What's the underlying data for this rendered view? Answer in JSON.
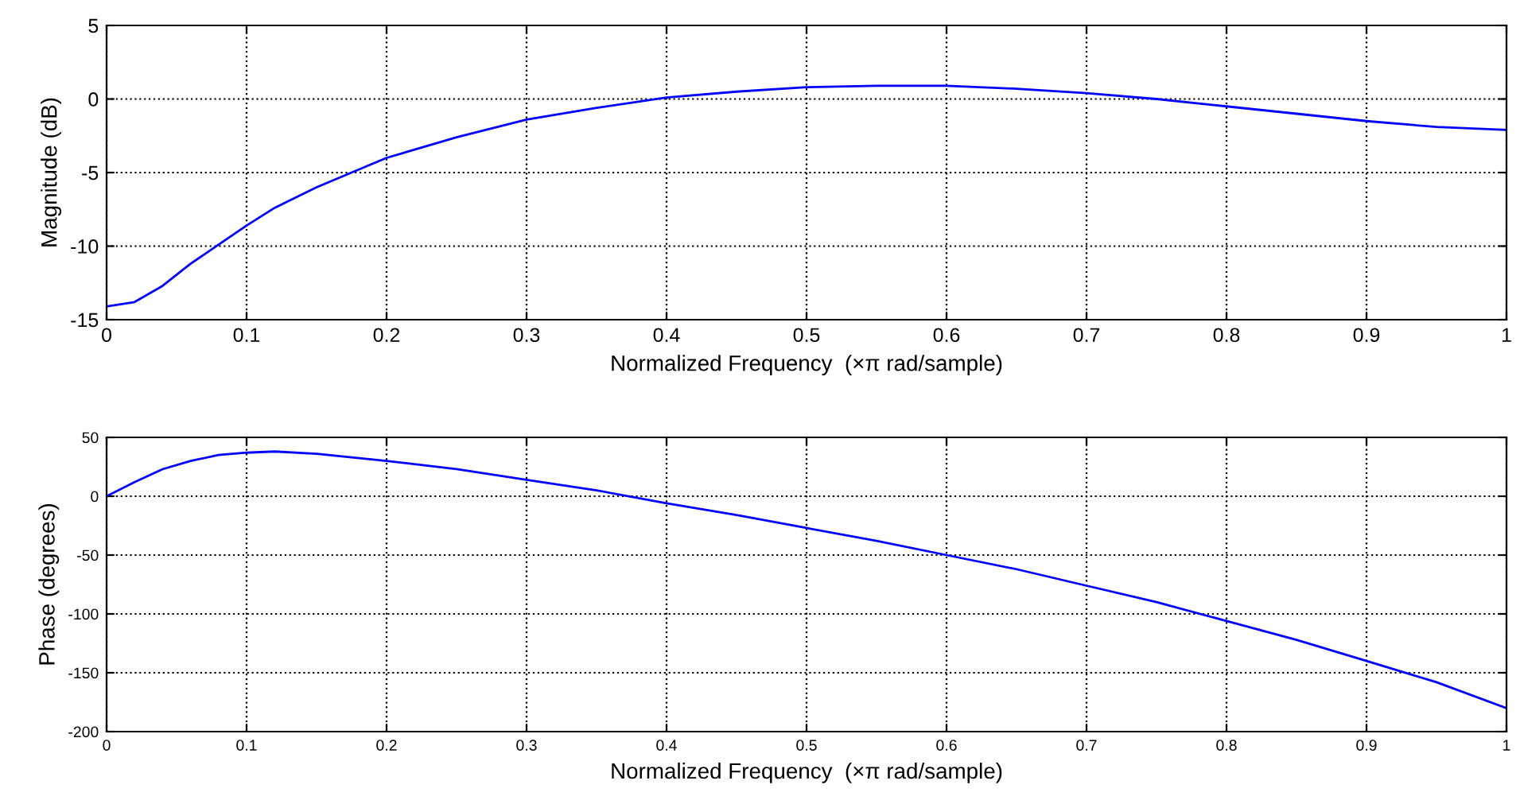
{
  "chart_data": [
    {
      "type": "line",
      "xlabel": "Normalized Frequency  (×π rad/sample)",
      "ylabel": "Magnitude (dB)",
      "x": [
        0,
        0.02,
        0.04,
        0.06,
        0.08,
        0.1,
        0.12,
        0.15,
        0.2,
        0.25,
        0.3,
        0.35,
        0.4,
        0.45,
        0.5,
        0.55,
        0.6,
        0.65,
        0.7,
        0.75,
        0.8,
        0.85,
        0.9,
        0.95,
        1.0
      ],
      "series": [
        {
          "color": "#0000ff",
          "values": [
            -14.1,
            -13.8,
            -12.7,
            -11.2,
            -9.9,
            -8.6,
            -7.4,
            -6.0,
            -4.0,
            -2.6,
            -1.4,
            -0.6,
            0.1,
            0.5,
            0.8,
            0.9,
            0.9,
            0.7,
            0.4,
            0.0,
            -0.5,
            -1.0,
            -1.5,
            -1.9,
            -2.1
          ]
        }
      ],
      "xlim": [
        0,
        1
      ],
      "xticks": [
        0,
        0.1,
        0.2,
        0.3,
        0.4,
        0.5,
        0.6,
        0.7,
        0.8,
        0.9,
        1
      ],
      "ylim": [
        -15,
        5
      ],
      "yticks": [
        -15,
        -10,
        -5,
        0,
        5
      ],
      "grid": true,
      "line_style": "solid"
    },
    {
      "type": "line",
      "xlabel": "Normalized Frequency  (×π rad/sample)",
      "ylabel": "Phase (degrees)",
      "x": [
        0,
        0.02,
        0.04,
        0.06,
        0.08,
        0.1,
        0.12,
        0.15,
        0.2,
        0.25,
        0.3,
        0.35,
        0.4,
        0.45,
        0.5,
        0.55,
        0.6,
        0.65,
        0.7,
        0.75,
        0.8,
        0.85,
        0.9,
        0.95,
        1.0
      ],
      "series": [
        {
          "color": "#0000ff",
          "values": [
            0,
            12,
            23,
            30,
            35,
            37,
            38,
            36,
            30,
            23,
            14,
            5,
            -6,
            -16,
            -27,
            -38,
            -50,
            -62,
            -76,
            -90,
            -106,
            -122,
            -140,
            -158,
            -180
          ]
        }
      ],
      "xlim": [
        0,
        1
      ],
      "xticks": [
        0,
        0.1,
        0.2,
        0.3,
        0.4,
        0.5,
        0.6,
        0.7,
        0.8,
        0.9,
        1
      ],
      "ylim": [
        -200,
        50
      ],
      "yticks": [
        -200,
        -150,
        -100,
        -50,
        0,
        50
      ],
      "grid": true,
      "line_style": "solid"
    }
  ]
}
